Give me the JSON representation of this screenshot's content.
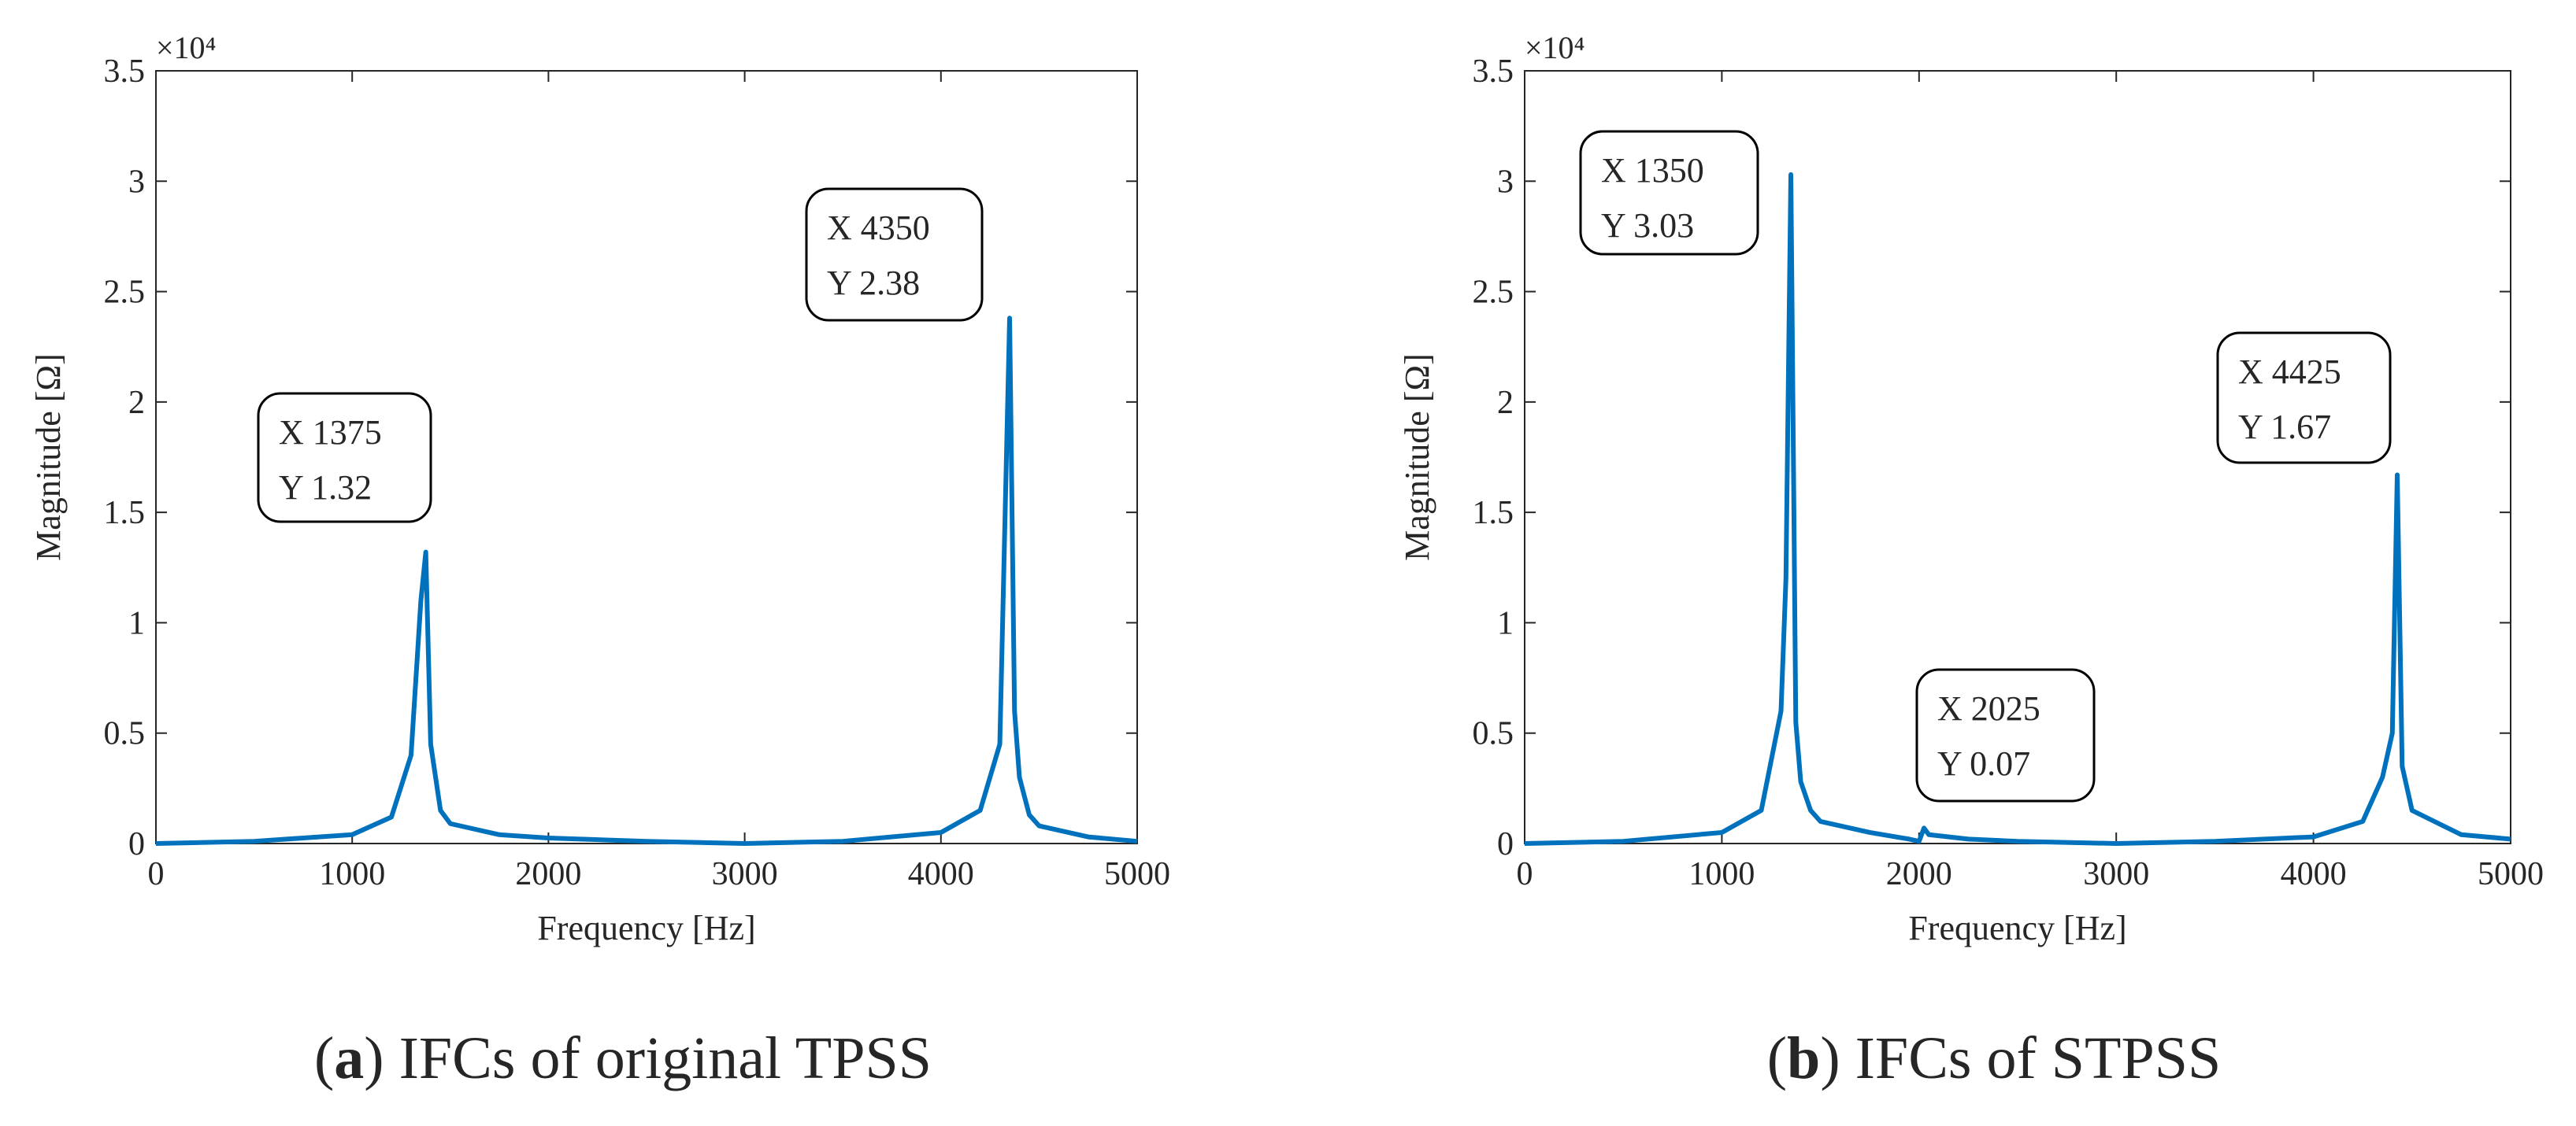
{
  "chart_data": [
    {
      "type": "line",
      "caption_open": "(",
      "caption_label": "a",
      "caption_text": ") IFCs of original TPSS",
      "xlabel": "Frequency  [Hz]",
      "ylabel": "Magnitude [Ω]",
      "y_multiplier": "×10⁴",
      "xlim": [
        0,
        5000
      ],
      "ylim": [
        0,
        3.5
      ],
      "xticks": [
        0,
        1000,
        2000,
        3000,
        4000,
        5000
      ],
      "yticks": [
        0,
        0.5,
        1,
        1.5,
        2,
        2.5,
        3,
        3.5
      ],
      "series": [
        {
          "color": "#0072bd",
          "x": [
            0,
            500,
            1000,
            1200,
            1300,
            1350,
            1375,
            1400,
            1450,
            1500,
            1750,
            2000,
            2500,
            3000,
            3500,
            4000,
            4200,
            4300,
            4350,
            4375,
            4400,
            4450,
            4500,
            4750,
            5000
          ],
          "values": [
            0,
            0.01,
            0.04,
            0.12,
            0.4,
            1.1,
            1.32,
            0.45,
            0.15,
            0.09,
            0.04,
            0.025,
            0.01,
            0,
            0.01,
            0.05,
            0.15,
            0.45,
            2.38,
            0.6,
            0.3,
            0.13,
            0.08,
            0.03,
            0.01
          ]
        }
      ],
      "annotations": [
        {
          "x_label": "X 1375",
          "y_label": "Y 1.32"
        },
        {
          "x_label": "X 4350",
          "y_label": "Y 2.38"
        }
      ]
    },
    {
      "type": "line",
      "caption_open": "(",
      "caption_label": "b",
      "caption_text": ") IFCs of STPSS",
      "xlabel": "Frequency  [Hz]",
      "ylabel": "Magnitude [Ω]",
      "y_multiplier": "×10⁴",
      "xlim": [
        0,
        5000
      ],
      "ylim": [
        0,
        3.5
      ],
      "xticks": [
        0,
        1000,
        2000,
        3000,
        4000,
        5000
      ],
      "yticks": [
        0,
        0.5,
        1,
        1.5,
        2,
        2.5,
        3,
        3.5
      ],
      "series": [
        {
          "color": "#0072bd",
          "x": [
            0,
            500,
            1000,
            1200,
            1300,
            1325,
            1350,
            1375,
            1400,
            1450,
            1500,
            1750,
            1950,
            2000,
            2025,
            2050,
            2250,
            2500,
            3000,
            3500,
            4000,
            4250,
            4350,
            4400,
            4425,
            4450,
            4500,
            4750,
            5000
          ],
          "values": [
            0,
            0.01,
            0.05,
            0.15,
            0.6,
            1.2,
            3.03,
            0.55,
            0.28,
            0.15,
            0.1,
            0.05,
            0.02,
            0.01,
            0.07,
            0.04,
            0.02,
            0.01,
            0,
            0.01,
            0.03,
            0.1,
            0.3,
            0.5,
            1.67,
            0.35,
            0.15,
            0.04,
            0.02
          ]
        }
      ],
      "annotations": [
        {
          "x_label": "X 1350",
          "y_label": "Y 3.03"
        },
        {
          "x_label": "X 2025",
          "y_label": "Y 0.07"
        },
        {
          "x_label": "X 4425",
          "y_label": "Y 1.67"
        }
      ]
    }
  ]
}
